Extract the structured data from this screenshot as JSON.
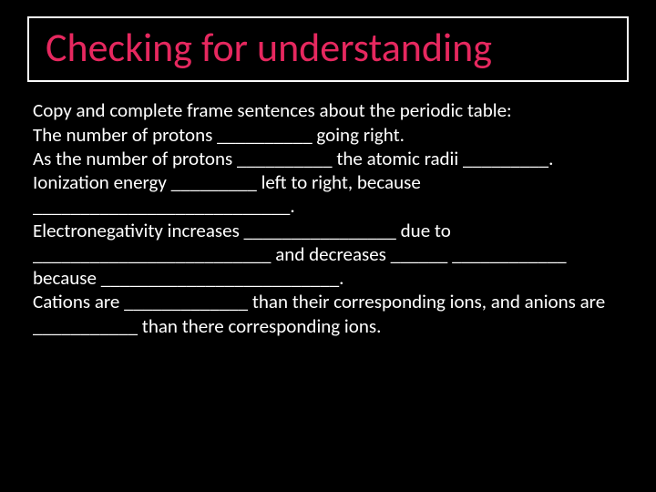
{
  "title": "Checking for understanding",
  "body": {
    "line1": "Copy and complete frame sentences about the periodic table:",
    "line2": "The number of protons __________ going right.",
    "line3": "As the number of protons __________  the atomic radii _________. Ionization energy _________ left to right, because ___________________________.",
    "line4": "Electronegativity increases ________________ due to _________________________ and decreases ______ ____________ because _________________________.",
    "line5": "Cations are _____________ than their corresponding ions, and anions are ___________ than there corresponding ions."
  },
  "colors": {
    "background": "#000000",
    "title_border": "#ffffff",
    "title_text": "#e6285f",
    "body_text": "#ffffff"
  },
  "typography": {
    "title_fontsize": 44,
    "body_fontsize": 21,
    "font_family": "Calibri"
  }
}
